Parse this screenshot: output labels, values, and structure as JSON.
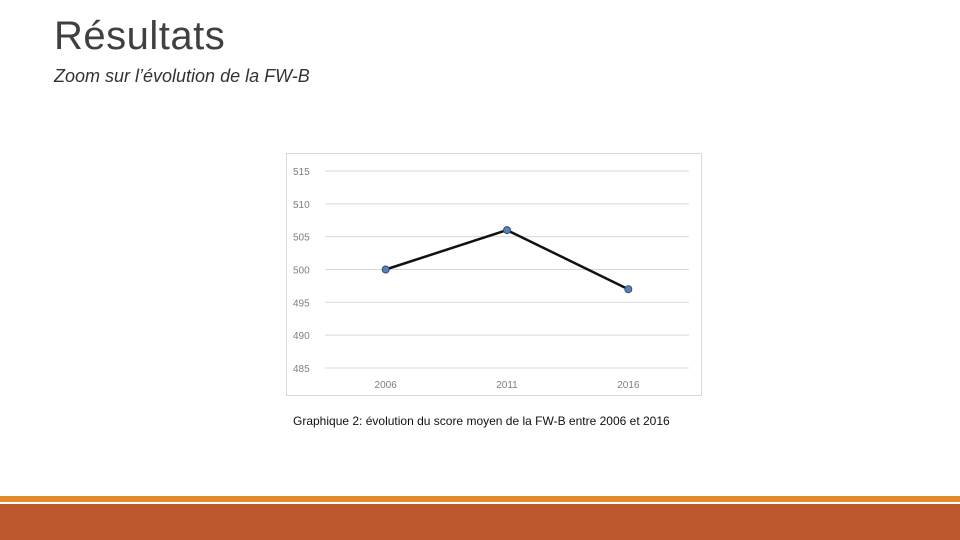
{
  "slide": {
    "title": "Résultats",
    "subtitle": "Zoom sur l’évolution de la FW-B",
    "caption": "Graphique 2: évolution du score moyen de la FW-B entre 2006 et 2016"
  },
  "colors": {
    "accent_line": "#e08a2a",
    "accent_bar": "#bd582c",
    "series_line": "#111111",
    "marker_fill": "#5b7fb5",
    "gridline": "#d9d9d9",
    "tick_text": "#7f7f7f"
  },
  "chart_data": {
    "type": "line",
    "title": "",
    "xlabel": "",
    "ylabel": "",
    "categories": [
      "2006",
      "2011",
      "2016"
    ],
    "series": [
      {
        "values": [
          500,
          506,
          497
        ]
      }
    ],
    "ylim": [
      485,
      515
    ],
    "yticks": [
      "515",
      "510",
      "505",
      "500",
      "495",
      "490",
      "485"
    ],
    "grid": true,
    "legend": "none"
  }
}
